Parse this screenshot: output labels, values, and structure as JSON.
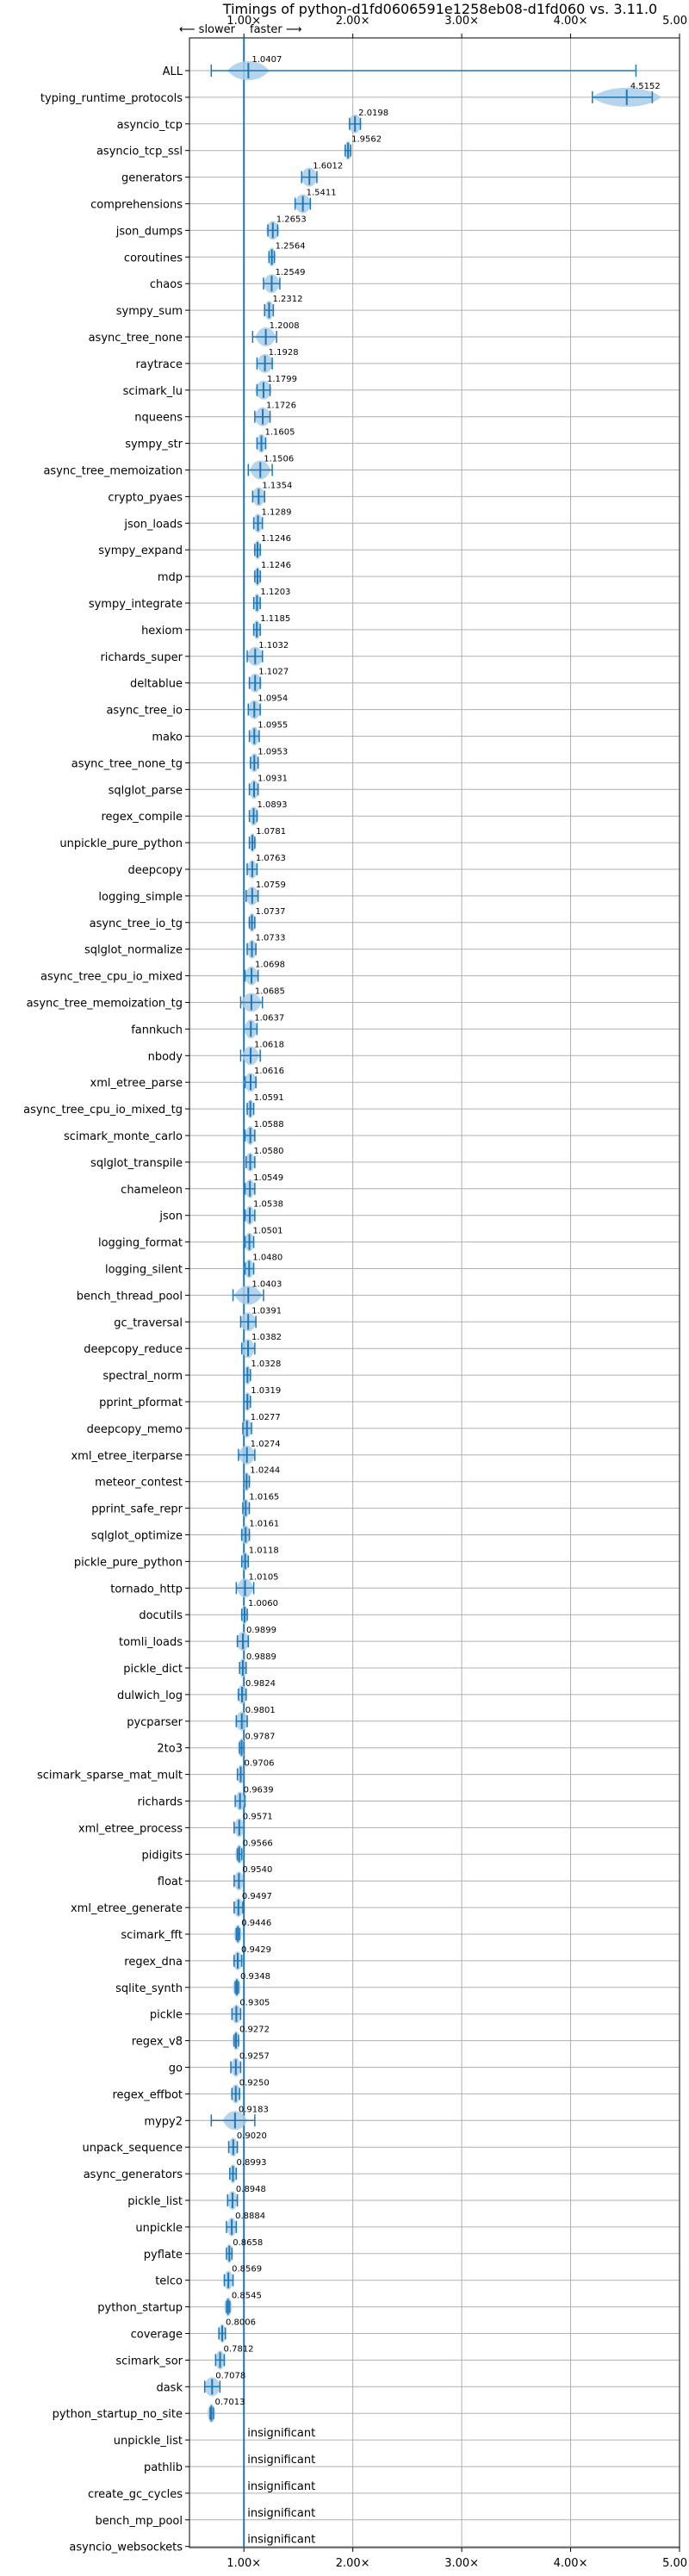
{
  "chart_data": {
    "type": "violin",
    "title": "Timings of python-d1fd0606591e1258eb08-d1fd060 vs. 3.11.0",
    "direction_labels": {
      "slower": "⟵ slower",
      "faster": "faster ⟶"
    },
    "xlim": [
      0.5,
      5.0
    ],
    "xticks": [
      1,
      2,
      3,
      4,
      5
    ],
    "xtick_labels": [
      "1.00×",
      "2.00×",
      "3.00×",
      "4.00×",
      "5.00×"
    ],
    "reference_line": 1.0,
    "grid": true,
    "colors": {
      "violin": "#a9cce8",
      "line": "#1f77b4",
      "median": "#ff4444",
      "grid": "#b0b0b0"
    },
    "benchmarks": [
      {
        "name": "ALL",
        "value": 1.0407,
        "lo": 0.7,
        "hi": 4.6,
        "spread": 0.12
      },
      {
        "name": "typing_runtime_protocols",
        "value": 4.5152,
        "lo": 4.2,
        "hi": 4.75,
        "spread": 0.2
      },
      {
        "name": "asyncio_tcp",
        "value": 2.0198,
        "lo": 1.97,
        "hi": 2.07,
        "spread": 0.04
      },
      {
        "name": "asyncio_tcp_ssl",
        "value": 1.9562,
        "lo": 1.93,
        "hi": 1.98,
        "spread": 0.02
      },
      {
        "name": "generators",
        "value": 1.6012,
        "lo": 1.53,
        "hi": 1.67,
        "spread": 0.05
      },
      {
        "name": "comprehensions",
        "value": 1.5411,
        "lo": 1.47,
        "hi": 1.61,
        "spread": 0.05
      },
      {
        "name": "json_dumps",
        "value": 1.2653,
        "lo": 1.22,
        "hi": 1.31,
        "spread": 0.04
      },
      {
        "name": "coroutines",
        "value": 1.2564,
        "lo": 1.23,
        "hi": 1.28,
        "spread": 0.02
      },
      {
        "name": "chaos",
        "value": 1.2549,
        "lo": 1.18,
        "hi": 1.33,
        "spread": 0.05
      },
      {
        "name": "sympy_sum",
        "value": 1.2312,
        "lo": 1.19,
        "hi": 1.27,
        "spread": 0.03
      },
      {
        "name": "async_tree_none",
        "value": 1.2008,
        "lo": 1.08,
        "hi": 1.3,
        "spread": 0.06
      },
      {
        "name": "raytrace",
        "value": 1.1928,
        "lo": 1.12,
        "hi": 1.26,
        "spread": 0.05
      },
      {
        "name": "scimark_lu",
        "value": 1.1799,
        "lo": 1.12,
        "hi": 1.24,
        "spread": 0.05
      },
      {
        "name": "nqueens",
        "value": 1.1726,
        "lo": 1.1,
        "hi": 1.24,
        "spread": 0.05
      },
      {
        "name": "sympy_str",
        "value": 1.1605,
        "lo": 1.12,
        "hi": 1.2,
        "spread": 0.03
      },
      {
        "name": "async_tree_memoization",
        "value": 1.1506,
        "lo": 1.04,
        "hi": 1.26,
        "spread": 0.06
      },
      {
        "name": "crypto_pyaes",
        "value": 1.1354,
        "lo": 1.08,
        "hi": 1.19,
        "spread": 0.04
      },
      {
        "name": "json_loads",
        "value": 1.1289,
        "lo": 1.09,
        "hi": 1.17,
        "spread": 0.03
      },
      {
        "name": "sympy_expand",
        "value": 1.1246,
        "lo": 1.1,
        "hi": 1.15,
        "spread": 0.02
      },
      {
        "name": "mdp",
        "value": 1.1246,
        "lo": 1.1,
        "hi": 1.15,
        "spread": 0.02
      },
      {
        "name": "sympy_integrate",
        "value": 1.1203,
        "lo": 1.09,
        "hi": 1.15,
        "spread": 0.02
      },
      {
        "name": "hexiom",
        "value": 1.1185,
        "lo": 1.09,
        "hi": 1.15,
        "spread": 0.02
      },
      {
        "name": "richards_super",
        "value": 1.1032,
        "lo": 1.03,
        "hi": 1.17,
        "spread": 0.05
      },
      {
        "name": "deltablue",
        "value": 1.1027,
        "lo": 1.05,
        "hi": 1.15,
        "spread": 0.04
      },
      {
        "name": "async_tree_io",
        "value": 1.0954,
        "lo": 1.04,
        "hi": 1.15,
        "spread": 0.04
      },
      {
        "name": "mako",
        "value": 1.0955,
        "lo": 1.05,
        "hi": 1.14,
        "spread": 0.03
      },
      {
        "name": "async_tree_none_tg",
        "value": 1.0953,
        "lo": 1.06,
        "hi": 1.13,
        "spread": 0.03
      },
      {
        "name": "sqlglot_parse",
        "value": 1.0931,
        "lo": 1.05,
        "hi": 1.13,
        "spread": 0.03
      },
      {
        "name": "regex_compile",
        "value": 1.0893,
        "lo": 1.05,
        "hi": 1.12,
        "spread": 0.03
      },
      {
        "name": "unpickle_pure_python",
        "value": 1.0781,
        "lo": 1.05,
        "hi": 1.1,
        "spread": 0.02
      },
      {
        "name": "deepcopy",
        "value": 1.0763,
        "lo": 1.03,
        "hi": 1.12,
        "spread": 0.03
      },
      {
        "name": "logging_simple",
        "value": 1.0759,
        "lo": 1.02,
        "hi": 1.13,
        "spread": 0.04
      },
      {
        "name": "async_tree_io_tg",
        "value": 1.0737,
        "lo": 1.05,
        "hi": 1.1,
        "spread": 0.02
      },
      {
        "name": "sqlglot_normalize",
        "value": 1.0733,
        "lo": 1.03,
        "hi": 1.11,
        "spread": 0.03
      },
      {
        "name": "async_tree_cpu_io_mixed",
        "value": 1.0698,
        "lo": 1.01,
        "hi": 1.13,
        "spread": 0.04
      },
      {
        "name": "async_tree_memoization_tg",
        "value": 1.0685,
        "lo": 0.97,
        "hi": 1.17,
        "spread": 0.06
      },
      {
        "name": "fannkuch",
        "value": 1.0637,
        "lo": 1.0,
        "hi": 1.12,
        "spread": 0.04
      },
      {
        "name": "nbody",
        "value": 1.0618,
        "lo": 0.97,
        "hi": 1.15,
        "spread": 0.05
      },
      {
        "name": "xml_etree_parse",
        "value": 1.0616,
        "lo": 1.01,
        "hi": 1.11,
        "spread": 0.04
      },
      {
        "name": "async_tree_cpu_io_mixed_tg",
        "value": 1.0591,
        "lo": 1.03,
        "hi": 1.09,
        "spread": 0.02
      },
      {
        "name": "scimark_monte_carlo",
        "value": 1.0588,
        "lo": 1.01,
        "hi": 1.1,
        "spread": 0.03
      },
      {
        "name": "sqlglot_transpile",
        "value": 1.058,
        "lo": 1.02,
        "hi": 1.1,
        "spread": 0.03
      },
      {
        "name": "chameleon",
        "value": 1.0549,
        "lo": 1.01,
        "hi": 1.1,
        "spread": 0.03
      },
      {
        "name": "json",
        "value": 1.0538,
        "lo": 1.01,
        "hi": 1.1,
        "spread": 0.03
      },
      {
        "name": "logging_format",
        "value": 1.0501,
        "lo": 1.01,
        "hi": 1.09,
        "spread": 0.03
      },
      {
        "name": "logging_silent",
        "value": 1.048,
        "lo": 1.01,
        "hi": 1.09,
        "spread": 0.03
      },
      {
        "name": "bench_thread_pool",
        "value": 1.0403,
        "lo": 0.9,
        "hi": 1.18,
        "spread": 0.08
      },
      {
        "name": "gc_traversal",
        "value": 1.0391,
        "lo": 0.97,
        "hi": 1.11,
        "spread": 0.05
      },
      {
        "name": "deepcopy_reduce",
        "value": 1.0382,
        "lo": 0.98,
        "hi": 1.1,
        "spread": 0.04
      },
      {
        "name": "spectral_norm",
        "value": 1.0328,
        "lo": 1.0,
        "hi": 1.06,
        "spread": 0.02
      },
      {
        "name": "pprint_pformat",
        "value": 1.0319,
        "lo": 1.0,
        "hi": 1.06,
        "spread": 0.02
      },
      {
        "name": "deepcopy_memo",
        "value": 1.0277,
        "lo": 0.99,
        "hi": 1.07,
        "spread": 0.03
      },
      {
        "name": "xml_etree_iterparse",
        "value": 1.0274,
        "lo": 0.95,
        "hi": 1.1,
        "spread": 0.05
      },
      {
        "name": "meteor_contest",
        "value": 1.0244,
        "lo": 1.0,
        "hi": 1.05,
        "spread": 0.02
      },
      {
        "name": "pprint_safe_repr",
        "value": 1.0165,
        "lo": 0.99,
        "hi": 1.05,
        "spread": 0.02
      },
      {
        "name": "sqlglot_optimize",
        "value": 1.0161,
        "lo": 0.98,
        "hi": 1.05,
        "spread": 0.03
      },
      {
        "name": "pickle_pure_python",
        "value": 1.0118,
        "lo": 0.98,
        "hi": 1.04,
        "spread": 0.02
      },
      {
        "name": "tornado_http",
        "value": 1.0105,
        "lo": 0.93,
        "hi": 1.09,
        "spread": 0.05
      },
      {
        "name": "docutils",
        "value": 1.006,
        "lo": 0.98,
        "hi": 1.03,
        "spread": 0.02
      },
      {
        "name": "tomli_loads",
        "value": 0.9899,
        "lo": 0.94,
        "hi": 1.04,
        "spread": 0.04
      },
      {
        "name": "pickle_dict",
        "value": 0.9889,
        "lo": 0.96,
        "hi": 1.02,
        "spread": 0.02
      },
      {
        "name": "dulwich_log",
        "value": 0.9824,
        "lo": 0.95,
        "hi": 1.02,
        "spread": 0.03
      },
      {
        "name": "pycparser",
        "value": 0.9801,
        "lo": 0.93,
        "hi": 1.03,
        "spread": 0.04
      },
      {
        "name": "2to3",
        "value": 0.9787,
        "lo": 0.96,
        "hi": 1.0,
        "spread": 0.02
      },
      {
        "name": "scimark_sparse_mat_mult",
        "value": 0.9706,
        "lo": 0.94,
        "hi": 1.0,
        "spread": 0.02
      },
      {
        "name": "richards",
        "value": 0.9639,
        "lo": 0.92,
        "hi": 1.01,
        "spread": 0.03
      },
      {
        "name": "xml_etree_process",
        "value": 0.9571,
        "lo": 0.91,
        "hi": 1.0,
        "spread": 0.03
      },
      {
        "name": "pidigits",
        "value": 0.9566,
        "lo": 0.94,
        "hi": 0.98,
        "spread": 0.02
      },
      {
        "name": "float",
        "value": 0.954,
        "lo": 0.91,
        "hi": 1.0,
        "spread": 0.03
      },
      {
        "name": "xml_etree_generate",
        "value": 0.9497,
        "lo": 0.91,
        "hi": 0.99,
        "spread": 0.03
      },
      {
        "name": "scimark_fft",
        "value": 0.9446,
        "lo": 0.93,
        "hi": 0.96,
        "spread": 0.02
      },
      {
        "name": "regex_dna",
        "value": 0.9429,
        "lo": 0.91,
        "hi": 0.98,
        "spread": 0.03
      },
      {
        "name": "sqlite_synth",
        "value": 0.9348,
        "lo": 0.92,
        "hi": 0.95,
        "spread": 0.02
      },
      {
        "name": "pickle",
        "value": 0.9305,
        "lo": 0.89,
        "hi": 0.97,
        "spread": 0.03
      },
      {
        "name": "regex_v8",
        "value": 0.9272,
        "lo": 0.91,
        "hi": 0.95,
        "spread": 0.02
      },
      {
        "name": "go",
        "value": 0.9257,
        "lo": 0.88,
        "hi": 0.97,
        "spread": 0.03
      },
      {
        "name": "regex_effbot",
        "value": 0.925,
        "lo": 0.89,
        "hi": 0.96,
        "spread": 0.03
      },
      {
        "name": "mypy2",
        "value": 0.9183,
        "lo": 0.7,
        "hi": 1.1,
        "spread": 0.07
      },
      {
        "name": "unpack_sequence",
        "value": 0.902,
        "lo": 0.86,
        "hi": 0.94,
        "spread": 0.03
      },
      {
        "name": "async_generators",
        "value": 0.8993,
        "lo": 0.87,
        "hi": 0.93,
        "spread": 0.02
      },
      {
        "name": "pickle_list",
        "value": 0.8948,
        "lo": 0.85,
        "hi": 0.94,
        "spread": 0.03
      },
      {
        "name": "unpickle",
        "value": 0.8884,
        "lo": 0.84,
        "hi": 0.93,
        "spread": 0.03
      },
      {
        "name": "pyflate",
        "value": 0.8658,
        "lo": 0.84,
        "hi": 0.89,
        "spread": 0.02
      },
      {
        "name": "telco",
        "value": 0.8569,
        "lo": 0.82,
        "hi": 0.9,
        "spread": 0.03
      },
      {
        "name": "python_startup",
        "value": 0.8545,
        "lo": 0.84,
        "hi": 0.87,
        "spread": 0.01
      },
      {
        "name": "coverage",
        "value": 0.8006,
        "lo": 0.77,
        "hi": 0.83,
        "spread": 0.02
      },
      {
        "name": "scimark_sor",
        "value": 0.7812,
        "lo": 0.74,
        "hi": 0.82,
        "spread": 0.03
      },
      {
        "name": "dask",
        "value": 0.7078,
        "lo": 0.64,
        "hi": 0.78,
        "spread": 0.05
      },
      {
        "name": "python_startup_no_site",
        "value": 0.7013,
        "lo": 0.69,
        "hi": 0.72,
        "spread": 0.01
      },
      {
        "name": "unpickle_list",
        "value": null,
        "label": "insignificant"
      },
      {
        "name": "pathlib",
        "value": null,
        "label": "insignificant"
      },
      {
        "name": "create_gc_cycles",
        "value": null,
        "label": "insignificant"
      },
      {
        "name": "bench_mp_pool",
        "value": null,
        "label": "insignificant"
      },
      {
        "name": "asyncio_websockets",
        "value": null,
        "label": "insignificant"
      }
    ]
  }
}
